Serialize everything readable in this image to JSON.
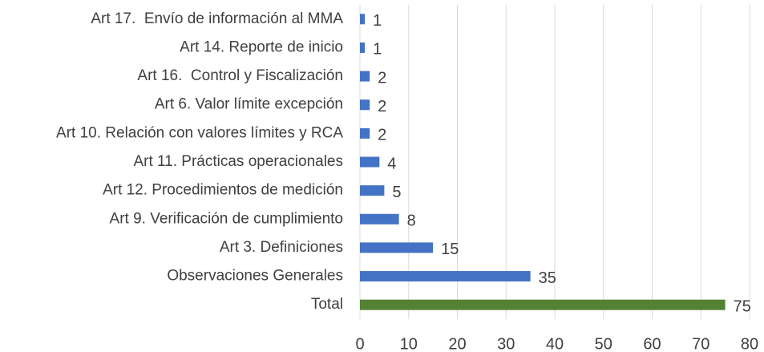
{
  "chart_data": {
    "type": "barh",
    "categories": [
      "Art 17.  Envío de información al MMA",
      "Art 14. Reporte de inicio",
      "Art 16.  Control y Fiscalización",
      "Art 6. Valor límite excepción",
      "Art 10. Relación con valores límites y RCA",
      "Art 11. Prácticas operacionales",
      "Art 12. Procedimientos de medición",
      "Art 9. Verificación de cumplimiento",
      "Art 3. Definiciones",
      "Observaciones Generales",
      "Total"
    ],
    "values": [
      1,
      1,
      2,
      2,
      2,
      4,
      5,
      8,
      15,
      35,
      75
    ],
    "colors": [
      "#4472c4",
      "#4472c4",
      "#4472c4",
      "#4472c4",
      "#4472c4",
      "#4472c4",
      "#4472c4",
      "#4472c4",
      "#4472c4",
      "#4472c4",
      "#548235"
    ],
    "xlim": [
      0,
      80
    ],
    "xticks": [
      0,
      10,
      20,
      30,
      40,
      50,
      60,
      70,
      80
    ],
    "grid": true
  }
}
